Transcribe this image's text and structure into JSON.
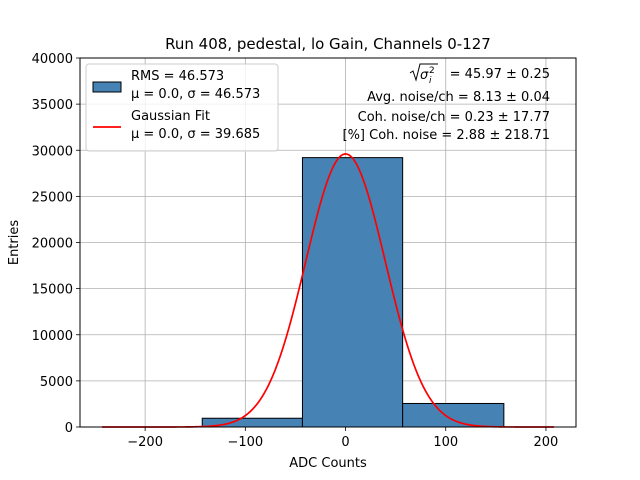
{
  "chart_data": {
    "type": "bar",
    "title": "Run 408, pedestal, lo Gain, Channels 0-127",
    "xlabel": "ADC Counts",
    "ylabel": "Entries",
    "xlim": [
      -265,
      230
    ],
    "ylim": [
      0,
      40000
    ],
    "grid": true,
    "x_ticks": [
      -200,
      -100,
      0,
      100,
      200
    ],
    "x_tick_labels": [
      "−200",
      "−100",
      "0",
      "100",
      "200"
    ],
    "y_ticks": [
      0,
      5000,
      10000,
      15000,
      20000,
      25000,
      30000,
      35000,
      40000
    ],
    "y_tick_labels": [
      "0",
      "5000",
      "10000",
      "15000",
      "20000",
      "25000",
      "30000",
      "35000",
      "40000"
    ],
    "bins": [
      {
        "x0": -143,
        "x1": -43,
        "count": 950
      },
      {
        "x0": -43,
        "x1": 57,
        "count": 29200
      },
      {
        "x0": 57,
        "x1": 158,
        "count": 2550
      }
    ],
    "gaussian_fit": {
      "mu": 0.0,
      "sigma": 39.685,
      "amplitude": 29600,
      "x_range": [
        -243,
        208
      ]
    },
    "bar_color": "#4682b4",
    "fit_color": "#ff0000",
    "legend": {
      "placement": "top-left",
      "entries": [
        {
          "type": "patch",
          "line1": "RMS = 46.573",
          "line2": "μ = 0.0, σ = 46.573"
        },
        {
          "type": "line",
          "line1": "Gaussian Fit",
          "line2": "μ = 0.0, σ = 39.685"
        }
      ]
    },
    "annotations": {
      "sigma_value": "= 45.97 ± 0.25",
      "avg_noise": "Avg. noise/ch = 8.13 ± 0.04",
      "coh_noise": "Coh. noise/ch = 0.23 ± 17.77",
      "coh_noise_pct": "[%] Coh. noise = 2.88 ± 218.71"
    }
  }
}
